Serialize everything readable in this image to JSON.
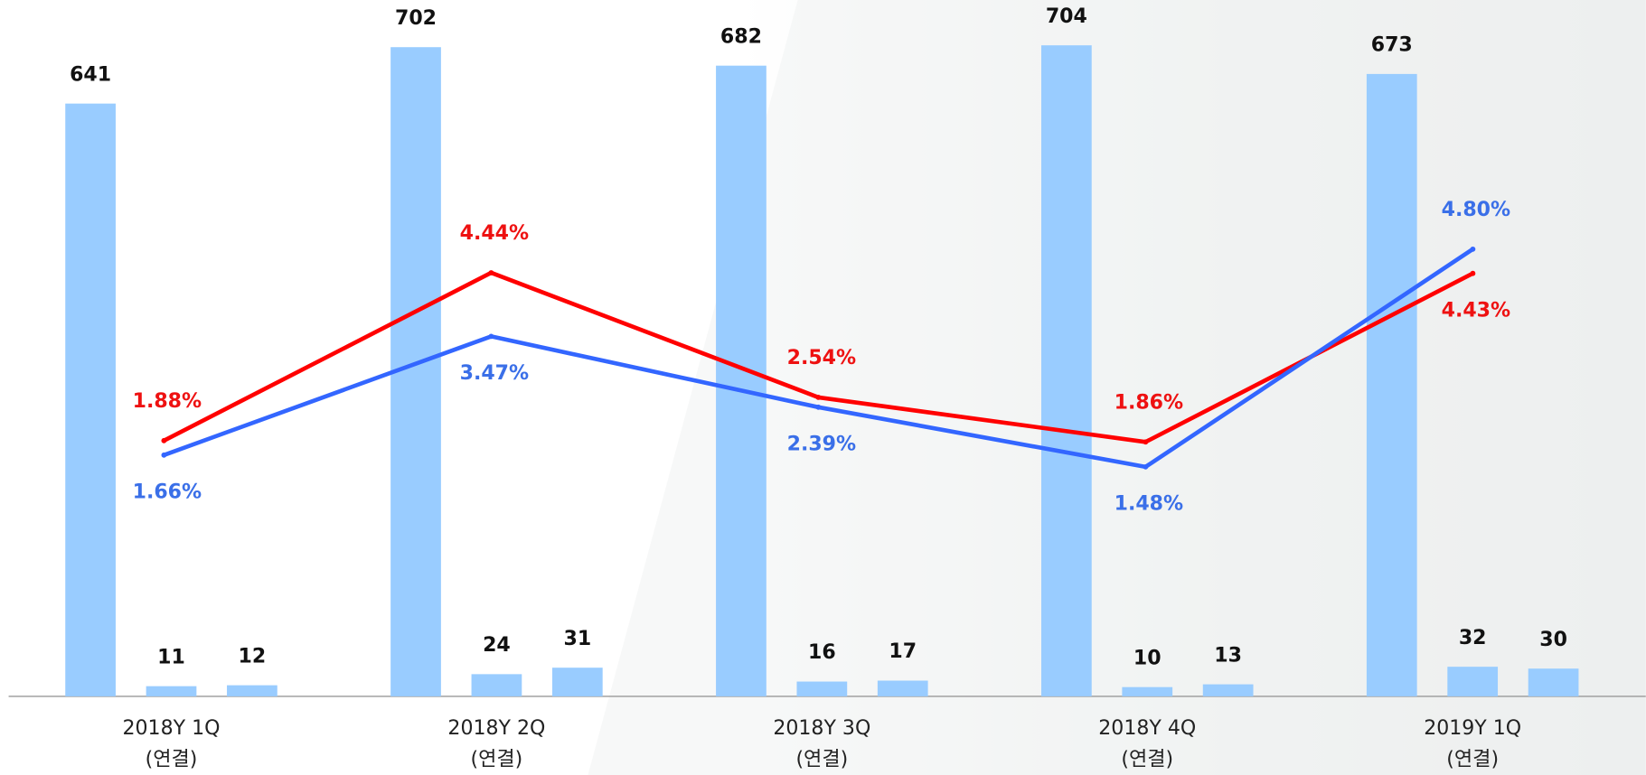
{
  "chart_data": {
    "type": "bar-line",
    "categories": [
      [
        "2018Y 1Q",
        "(연결)"
      ],
      [
        "2018Y 2Q",
        "(연결)"
      ],
      [
        "2018Y 3Q",
        "(연결)"
      ],
      [
        "2018Y 4Q",
        "(연결)"
      ],
      [
        "2019Y 1Q",
        "(연결)"
      ]
    ],
    "series": [
      {
        "type": "bar",
        "color": "#99ccff",
        "values": [
          641,
          702,
          682,
          704,
          673
        ]
      },
      {
        "type": "bar",
        "color": "#99ccff",
        "values": [
          11,
          24,
          16,
          10,
          32
        ]
      },
      {
        "type": "bar",
        "color": "#99ccff",
        "values": [
          12,
          31,
          17,
          13,
          30
        ]
      },
      {
        "type": "line",
        "axis": "y2",
        "color": "#ff0000",
        "label_color": "#ee1111",
        "values": [
          1.88,
          4.44,
          2.54,
          1.86,
          4.43
        ],
        "value_labels": [
          "1.88%",
          "4.44%",
          "2.54%",
          "1.86%",
          "4.43%"
        ]
      },
      {
        "type": "line",
        "axis": "y2",
        "color": "#3366ff",
        "label_color": "#3a6fe8",
        "values": [
          1.66,
          3.47,
          2.39,
          1.48,
          4.8
        ],
        "value_labels": [
          "1.66%",
          "3.47%",
          "2.39%",
          "1.48%",
          "4.80%"
        ]
      }
    ],
    "ylim": [
      0,
      753
    ],
    "y2lim": [
      -2.02,
      8.6
    ]
  }
}
